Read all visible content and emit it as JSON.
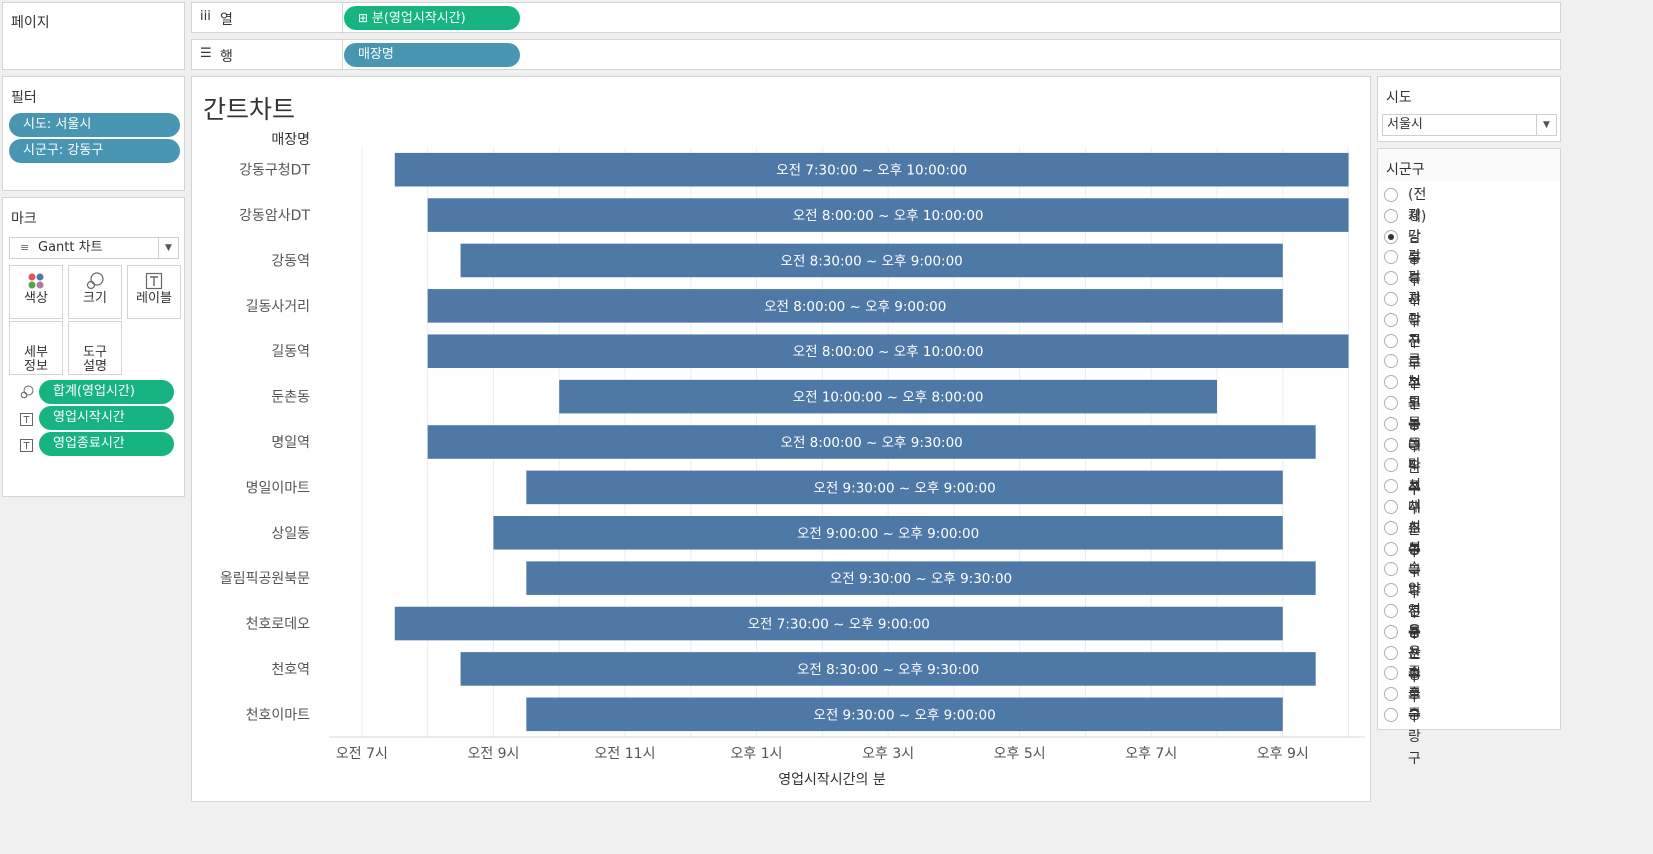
{
  "shelves": {
    "pages_label": "페이지",
    "columns_label": "열",
    "columns_pill": "분(영업시작시간)",
    "rows_label": "행",
    "rows_pill": "매장명"
  },
  "filters": {
    "title": "필터",
    "items": [
      "시도: 서울시",
      "시군구: 강동구"
    ]
  },
  "marks": {
    "title": "마크",
    "type": "Gantt 차트",
    "buttons": [
      "색상",
      "크기",
      "레이블",
      "세부\n정보",
      "도구\n설명"
    ],
    "fields": [
      "합계(영업시간)",
      "영업시작시간",
      "영업종료시간"
    ]
  },
  "sido": {
    "title": "시도",
    "selected": "서울시"
  },
  "sigungu": {
    "title": "시군구",
    "selected": "강동구",
    "options": [
      "(전체)",
      "강남구",
      "강동구",
      "강북구",
      "강서구",
      "관악구",
      "광진구",
      "구로구",
      "금천구",
      "노원구",
      "도봉구",
      "동대문구",
      "동작구",
      "마포구",
      "서대문구",
      "서초구",
      "성동구",
      "성북구",
      "송파구",
      "양천구",
      "영등포구",
      "용산구",
      "은평구",
      "종로구",
      "중구",
      "중랑구"
    ]
  },
  "colors": {
    "bar": "#4e79a7",
    "pill_green": "#17b482",
    "pill_blue": "#4996b2"
  },
  "chart_data": {
    "type": "gantt",
    "title": "간트차트",
    "row_header": "매장명",
    "xlabel": "영업시작시간의 분",
    "x_unit": "hour of day",
    "xlim": [
      6.5,
      22.25
    ],
    "x_ticks": [
      {
        "value": 7,
        "label": "오전 7시"
      },
      {
        "value": 9,
        "label": "오전 9시"
      },
      {
        "value": 11,
        "label": "오전 11시"
      },
      {
        "value": 13,
        "label": "오후 1시"
      },
      {
        "value": 15,
        "label": "오후 3시"
      },
      {
        "value": 17,
        "label": "오후 5시"
      },
      {
        "value": 19,
        "label": "오후 7시"
      },
      {
        "value": 21,
        "label": "오후 9시"
      }
    ],
    "rows": [
      {
        "name": "강동구청DT",
        "start": 7.5,
        "end": 22,
        "label": "오전 7:30:00 ~ 오후 10:00:00"
      },
      {
        "name": "강동암사DT",
        "start": 8,
        "end": 22,
        "label": "오전 8:00:00 ~ 오후 10:00:00"
      },
      {
        "name": "강동역",
        "start": 8.5,
        "end": 21,
        "label": "오전 8:30:00 ~ 오후 9:00:00"
      },
      {
        "name": "길동사거리",
        "start": 8,
        "end": 21,
        "label": "오전 8:00:00 ~ 오후 9:00:00"
      },
      {
        "name": "길동역",
        "start": 8,
        "end": 22,
        "label": "오전 8:00:00 ~ 오후 10:00:00"
      },
      {
        "name": "둔촌동",
        "start": 10,
        "end": 20,
        "label": "오전 10:00:00 ~ 오후 8:00:00"
      },
      {
        "name": "명일역",
        "start": 8,
        "end": 21.5,
        "label": "오전 8:00:00 ~ 오후 9:30:00"
      },
      {
        "name": "명일이마트",
        "start": 9.5,
        "end": 21,
        "label": "오전 9:30:00 ~ 오후 9:00:00"
      },
      {
        "name": "상일동",
        "start": 9,
        "end": 21,
        "label": "오전 9:00:00 ~ 오후 9:00:00"
      },
      {
        "name": "올림픽공원북문",
        "start": 9.5,
        "end": 21.5,
        "label": "오전 9:30:00 ~ 오후 9:30:00"
      },
      {
        "name": "천호로데오",
        "start": 7.5,
        "end": 21,
        "label": "오전 7:30:00 ~ 오후 9:00:00"
      },
      {
        "name": "천호역",
        "start": 8.5,
        "end": 21.5,
        "label": "오전 8:30:00 ~ 오후 9:30:00"
      },
      {
        "name": "천호이마트",
        "start": 9.5,
        "end": 21,
        "label": "오전 9:30:00 ~ 오후 9:00:00"
      }
    ]
  }
}
